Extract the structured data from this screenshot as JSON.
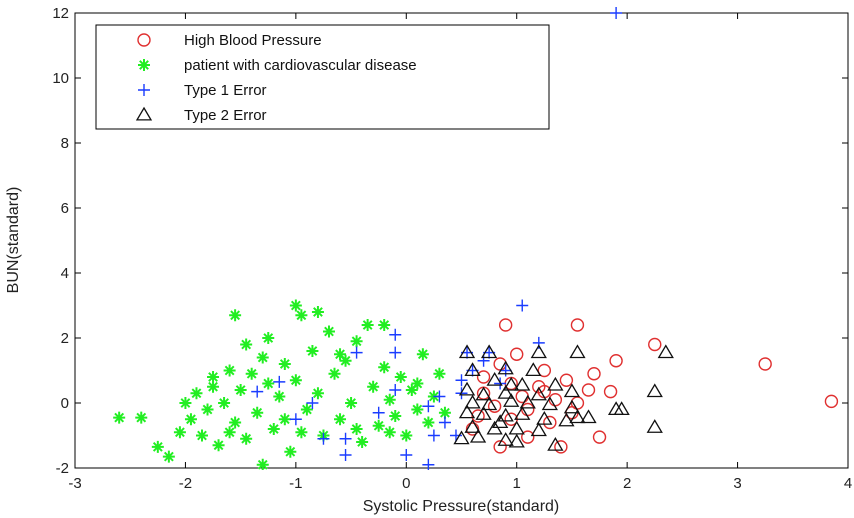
{
  "chart_data": {
    "type": "scatter",
    "title": "",
    "xlabel": "Systolic Pressure(standard)",
    "ylabel": "BUN(standard)",
    "xlim": [
      -3,
      4
    ],
    "ylim": [
      -2,
      12
    ],
    "xticks": [
      -3,
      -2,
      -1,
      0,
      1,
      2,
      3,
      4
    ],
    "yticks": [
      -2,
      0,
      2,
      4,
      6,
      8,
      10,
      12
    ],
    "grid": false,
    "legend_position": "top-left",
    "series": [
      {
        "name": "High Blood Pressure",
        "marker": "circle",
        "color": "#e03030",
        "points": [
          [
            0.9,
            2.4
          ],
          [
            1.55,
            2.4
          ],
          [
            2.25,
            1.8
          ],
          [
            3.25,
            1.2
          ],
          [
            3.85,
            0.05
          ],
          [
            1.0,
            1.5
          ],
          [
            0.85,
            1.2
          ],
          [
            1.25,
            1.0
          ],
          [
            1.7,
            0.9
          ],
          [
            1.45,
            0.7
          ],
          [
            0.95,
            0.6
          ],
          [
            1.2,
            0.5
          ],
          [
            1.65,
            0.4
          ],
          [
            1.85,
            0.35
          ],
          [
            0.7,
            0.3
          ],
          [
            1.05,
            0.2
          ],
          [
            1.35,
            0.1
          ],
          [
            1.55,
            0.0
          ],
          [
            0.8,
            -0.1
          ],
          [
            1.1,
            -0.2
          ],
          [
            1.5,
            -0.3
          ],
          [
            0.65,
            -0.4
          ],
          [
            0.95,
            -0.5
          ],
          [
            1.3,
            -0.6
          ],
          [
            1.75,
            -1.05
          ],
          [
            1.1,
            -1.05
          ],
          [
            0.85,
            -1.35
          ],
          [
            1.4,
            -1.35
          ],
          [
            1.9,
            1.3
          ],
          [
            0.7,
            0.8
          ],
          [
            1.25,
            0.35
          ],
          [
            0.6,
            -0.8
          ]
        ]
      },
      {
        "name": "patient with cardiovascular disease",
        "marker": "star",
        "color": "#22ee22",
        "points": [
          [
            -2.6,
            -0.45
          ],
          [
            -2.4,
            -0.45
          ],
          [
            -2.25,
            -1.35
          ],
          [
            -2.15,
            -1.65
          ],
          [
            -2.05,
            -0.9
          ],
          [
            -1.95,
            -0.5
          ],
          [
            -1.9,
            0.3
          ],
          [
            -1.85,
            -1.0
          ],
          [
            -1.8,
            -0.2
          ],
          [
            -1.75,
            0.5
          ],
          [
            -1.7,
            -1.3
          ],
          [
            -1.65,
            0.0
          ],
          [
            -1.6,
            1.0
          ],
          [
            -1.55,
            -0.6
          ],
          [
            -1.5,
            0.4
          ],
          [
            -1.45,
            -1.1
          ],
          [
            -1.4,
            0.9
          ],
          [
            -1.35,
            -0.3
          ],
          [
            -1.3,
            1.4
          ],
          [
            -1.25,
            2.0
          ],
          [
            -1.2,
            -0.8
          ],
          [
            -1.15,
            0.2
          ],
          [
            -1.1,
            1.2
          ],
          [
            -1.05,
            -1.5
          ],
          [
            -1.0,
            0.7
          ],
          [
            -0.95,
            2.7
          ],
          [
            -0.9,
            -0.2
          ],
          [
            -0.85,
            1.6
          ],
          [
            -0.8,
            0.3
          ],
          [
            -0.75,
            -1.0
          ],
          [
            -0.7,
            2.2
          ],
          [
            -0.65,
            0.9
          ],
          [
            -0.6,
            -0.5
          ],
          [
            -0.55,
            1.3
          ],
          [
            -0.5,
            0.0
          ],
          [
            -0.45,
            1.9
          ],
          [
            -0.4,
            -1.2
          ],
          [
            -0.35,
            2.4
          ],
          [
            -0.3,
            0.5
          ],
          [
            -0.25,
            -0.7
          ],
          [
            -0.2,
            1.1
          ],
          [
            -0.15,
            0.1
          ],
          [
            -0.1,
            -0.4
          ],
          [
            -0.05,
            0.8
          ],
          [
            0.0,
            -1.0
          ],
          [
            0.05,
            0.4
          ],
          [
            0.1,
            -0.2
          ],
          [
            0.15,
            1.5
          ],
          [
            0.2,
            -0.6
          ],
          [
            0.25,
            0.2
          ],
          [
            0.3,
            0.9
          ],
          [
            0.35,
            -0.3
          ],
          [
            -1.55,
            2.7
          ],
          [
            -1.0,
            3.0
          ],
          [
            -0.8,
            2.8
          ],
          [
            -1.3,
            -1.9
          ],
          [
            -1.75,
            0.8
          ],
          [
            -0.2,
            2.4
          ],
          [
            -2.0,
            0.0
          ],
          [
            -1.45,
            1.8
          ],
          [
            -0.6,
            1.5
          ],
          [
            -0.95,
            -0.9
          ],
          [
            -1.25,
            0.6
          ],
          [
            -0.45,
            -0.8
          ],
          [
            -0.15,
            -0.9
          ],
          [
            0.1,
            0.6
          ],
          [
            -1.6,
            -0.9
          ],
          [
            -1.1,
            -0.5
          ]
        ]
      },
      {
        "name": "Type 1 Error",
        "marker": "plus",
        "color": "#1a3cff",
        "points": [
          [
            1.9,
            12.0
          ],
          [
            1.05,
            3.0
          ],
          [
            1.2,
            1.85
          ],
          [
            -0.1,
            2.1
          ],
          [
            -0.45,
            1.55
          ],
          [
            -0.1,
            1.55
          ],
          [
            0.55,
            1.55
          ],
          [
            0.75,
            1.55
          ],
          [
            0.7,
            1.3
          ],
          [
            0.5,
            0.7
          ],
          [
            0.9,
            1.0
          ],
          [
            0.85,
            0.6
          ],
          [
            0.5,
            0.3
          ],
          [
            -1.35,
            0.35
          ],
          [
            -1.15,
            0.65
          ],
          [
            -1.0,
            -0.5
          ],
          [
            -0.75,
            -1.1
          ],
          [
            -0.55,
            -1.6
          ],
          [
            -0.1,
            0.4
          ],
          [
            0.2,
            -0.1
          ],
          [
            0.35,
            -0.6
          ],
          [
            0.25,
            -1.0
          ],
          [
            0.0,
            -1.6
          ],
          [
            0.2,
            -1.9
          ],
          [
            -0.55,
            -1.1
          ],
          [
            -0.25,
            -0.3
          ],
          [
            0.3,
            0.2
          ],
          [
            -0.85,
            0.0
          ],
          [
            0.6,
            1.0
          ],
          [
            0.45,
            -1.0
          ]
        ]
      },
      {
        "name": "Type 2 Error",
        "marker": "triangle",
        "color": "#111111",
        "points": [
          [
            0.55,
            1.55
          ],
          [
            0.75,
            1.55
          ],
          [
            1.55,
            1.55
          ],
          [
            2.35,
            1.55
          ],
          [
            0.6,
            1.0
          ],
          [
            0.9,
            1.05
          ],
          [
            1.15,
            1.0
          ],
          [
            0.8,
            0.7
          ],
          [
            1.05,
            0.55
          ],
          [
            1.35,
            0.55
          ],
          [
            1.5,
            0.35
          ],
          [
            0.55,
            0.4
          ],
          [
            0.7,
            0.25
          ],
          [
            0.9,
            0.3
          ],
          [
            1.2,
            0.25
          ],
          [
            2.25,
            0.35
          ],
          [
            0.6,
            0.0
          ],
          [
            0.75,
            -0.05
          ],
          [
            0.95,
            0.05
          ],
          [
            1.1,
            0.0
          ],
          [
            1.3,
            -0.05
          ],
          [
            1.5,
            -0.15
          ],
          [
            1.65,
            -0.45
          ],
          [
            1.9,
            -0.2
          ],
          [
            0.55,
            -0.3
          ],
          [
            0.7,
            -0.35
          ],
          [
            0.9,
            -0.4
          ],
          [
            1.05,
            -0.35
          ],
          [
            1.25,
            -0.5
          ],
          [
            1.45,
            -0.55
          ],
          [
            1.95,
            -0.2
          ],
          [
            0.6,
            -0.75
          ],
          [
            0.8,
            -0.8
          ],
          [
            1.0,
            -0.8
          ],
          [
            1.2,
            -0.85
          ],
          [
            2.25,
            -0.75
          ],
          [
            0.5,
            -1.1
          ],
          [
            0.65,
            -1.05
          ],
          [
            0.9,
            -1.15
          ],
          [
            1.35,
            -1.3
          ],
          [
            1.0,
            -1.2
          ],
          [
            1.55,
            -0.45
          ],
          [
            0.95,
            0.55
          ],
          [
            1.2,
            1.55
          ],
          [
            0.85,
            -0.6
          ]
        ]
      }
    ]
  }
}
